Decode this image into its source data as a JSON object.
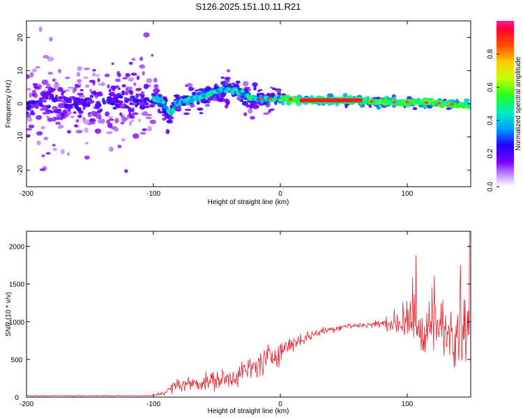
{
  "figure": {
    "title": "S126.2025.151.10.11.R21"
  },
  "colors": {
    "snr_line": "#e8202a",
    "axis": "#000000",
    "background": "#ffffff"
  },
  "chart_data": [
    {
      "type": "heatmap",
      "title": "S126.2025.151.10.11.R21",
      "xlabel": "Height of straight line (km)",
      "ylabel": "Frequency (Hz)",
      "xlim": [
        -200,
        150
      ],
      "ylim": [
        -25,
        25
      ],
      "xticks": [
        -200,
        -100,
        0,
        100
      ],
      "yticks": [
        -20,
        -10,
        0,
        10,
        20
      ],
      "colormap": "rainbow",
      "colorbar": {
        "label": "Normalized spectral amplitude",
        "range": [
          0.0,
          1.0
        ],
        "ticks": [
          "0.0",
          "0.2",
          "0.4",
          "0.6",
          "0.8"
        ]
      },
      "ridge_centerline": [
        {
          "x": -200,
          "y": 0.5
        },
        {
          "x": -150,
          "y": 0.0
        },
        {
          "x": -110,
          "y": 1.5
        },
        {
          "x": -95,
          "y": 1.5
        },
        {
          "x": -87,
          "y": -3.0
        },
        {
          "x": -80,
          "y": 0.5
        },
        {
          "x": -70,
          "y": 1.5
        },
        {
          "x": -55,
          "y": 3.0
        },
        {
          "x": -45,
          "y": 4.5
        },
        {
          "x": -35,
          "y": 4.0
        },
        {
          "x": -25,
          "y": 2.0
        },
        {
          "x": -15,
          "y": 1.5
        },
        {
          "x": 0,
          "y": 1.5
        },
        {
          "x": 20,
          "y": 1.0
        },
        {
          "x": 60,
          "y": 1.0
        },
        {
          "x": 80,
          "y": 0.5
        },
        {
          "x": 110,
          "y": 0.5
        },
        {
          "x": 150,
          "y": -0.5
        }
      ],
      "peak_band": {
        "x_range": [
          15,
          65
        ],
        "y_range": [
          0.3,
          1.8
        ],
        "amplitude": 1.0
      },
      "regions": [
        {
          "x_range": [
            -200,
            -100
          ],
          "freq_spread_hz": 25,
          "max_amplitude": 0.3
        },
        {
          "x_range": [
            -100,
            0
          ],
          "freq_spread_hz": 6,
          "max_amplitude": 0.55
        },
        {
          "x_range": [
            0,
            150
          ],
          "freq_spread_hz": 2,
          "max_amplitude": 1.0
        }
      ]
    },
    {
      "type": "line",
      "xlabel": "Height of straight line (km)",
      "ylabel": "SNR (10 * v/v)",
      "xlim": [
        -200,
        150
      ],
      "ylim": [
        0,
        2200
      ],
      "xticks": [
        -200,
        -100,
        0,
        100
      ],
      "yticks": [
        0,
        500,
        1000,
        1500,
        2000
      ],
      "series": [
        {
          "envelope": [
            {
              "x": -200,
              "mean": 18,
              "noise": 8
            },
            {
              "x": -100,
              "mean": 20,
              "noise": 8
            },
            {
              "x": -90,
              "mean": 70,
              "noise": 60
            },
            {
              "x": -82,
              "mean": 160,
              "noise": 130
            },
            {
              "x": -60,
              "mean": 200,
              "noise": 160
            },
            {
              "x": -40,
              "mean": 250,
              "noise": 200
            },
            {
              "x": -20,
              "mean": 400,
              "noise": 250
            },
            {
              "x": -5,
              "mean": 560,
              "noise": 260
            },
            {
              "x": 10,
              "mean": 720,
              "noise": 160
            },
            {
              "x": 30,
              "mean": 860,
              "noise": 80
            },
            {
              "x": 50,
              "mean": 940,
              "noise": 60
            },
            {
              "x": 70,
              "mean": 960,
              "noise": 60
            },
            {
              "x": 85,
              "mean": 980,
              "noise": 120
            },
            {
              "x": 95,
              "mean": 1000,
              "noise": 300
            },
            {
              "x": 110,
              "mean": 950,
              "noise": 500
            },
            {
              "x": 130,
              "mean": 900,
              "noise": 600
            },
            {
              "x": 148,
              "mean": 900,
              "noise": 650
            }
          ],
          "final_spike": {
            "x": 149,
            "y": 2200
          },
          "noted_peaks": [
            {
              "x": 107,
              "y": 1880
            },
            {
              "x": 142,
              "y": 1750
            }
          ]
        }
      ]
    }
  ]
}
